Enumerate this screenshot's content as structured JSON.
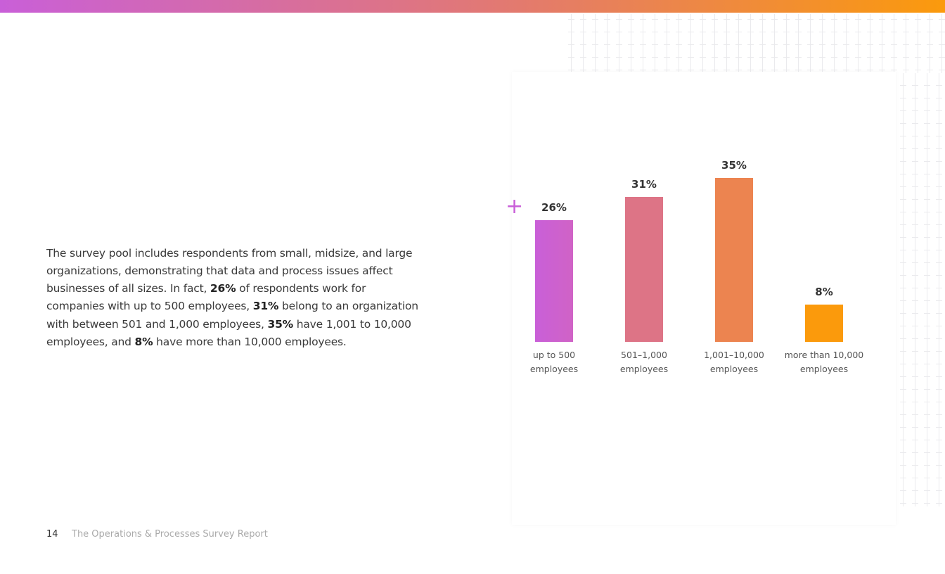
{
  "footer": {
    "page_number": "14",
    "report_title": "The Operations & Processes Survey Report"
  },
  "paragraph": [
    {
      "text": "The survey pool includes respondents from small, midsize, and large organizations, demonstrating that data and process issues affect businesses of all sizes. In fact, ",
      "bold": false
    },
    {
      "text": "26%",
      "bold": true
    },
    {
      "text": " of respondents work for companies with up to 500 employees, ",
      "bold": false
    },
    {
      "text": "31%",
      "bold": true
    },
    {
      "text": " belong to an organization with between 501 and 1,000 employees, ",
      "bold": false
    },
    {
      "text": "35%",
      "bold": true
    },
    {
      "text": " have 1,001 to 10,000 employees, and ",
      "bold": false
    },
    {
      "text": "8%",
      "bold": true
    },
    {
      "text": " have more than 10,000 employees.",
      "bold": false
    }
  ],
  "decor": {
    "plus_icon": "+",
    "accent_start": "#c95fd8",
    "accent_end": "#fb9a0c"
  },
  "chart_data": {
    "type": "bar",
    "title": "",
    "xlabel": "",
    "ylabel": "",
    "ylim": [
      0,
      35
    ],
    "grid": false,
    "categories": [
      "up to 500\nemployees",
      "501–1,000\nemployees",
      "1,001–10,000\nemployees",
      "more than 10,000\nemployees"
    ],
    "values": [
      26,
      31,
      35,
      8
    ],
    "data_labels": [
      "26%",
      "31%",
      "35%",
      "8%"
    ],
    "colors": [
      "#c95fd8",
      "#dd7486",
      "#ec8450",
      "#fb9a0c"
    ]
  }
}
